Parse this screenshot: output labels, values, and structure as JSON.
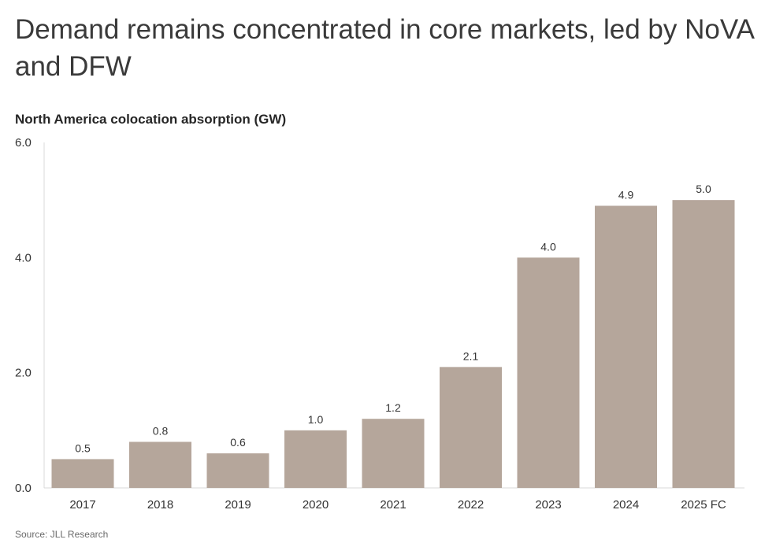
{
  "chart_data": {
    "type": "bar",
    "title": "Demand remains concentrated in core markets, led by NoVA and DFW",
    "subtitle": "North America colocation absorption (GW)",
    "source": "Source: JLL Research",
    "xlabel": "",
    "ylabel": "",
    "ylim": [
      0,
      6
    ],
    "yticks": [
      "0.0",
      "2.0",
      "4.0",
      "6.0"
    ],
    "categories": [
      "2017",
      "2018",
      "2019",
      "2020",
      "2021",
      "2022",
      "2023",
      "2024",
      "2025 FC"
    ],
    "values": [
      0.5,
      0.8,
      0.6,
      1.0,
      1.2,
      2.1,
      4.0,
      4.9,
      5.0
    ],
    "data_labels": [
      "0.5",
      "0.8",
      "0.6",
      "1.0",
      "1.2",
      "2.1",
      "4.0",
      "4.9",
      "5.0"
    ],
    "grid": false,
    "legend": "none",
    "colors": {
      "bar": "#b5a69b",
      "axis": "#d9d9d9",
      "text": "#333333"
    }
  }
}
